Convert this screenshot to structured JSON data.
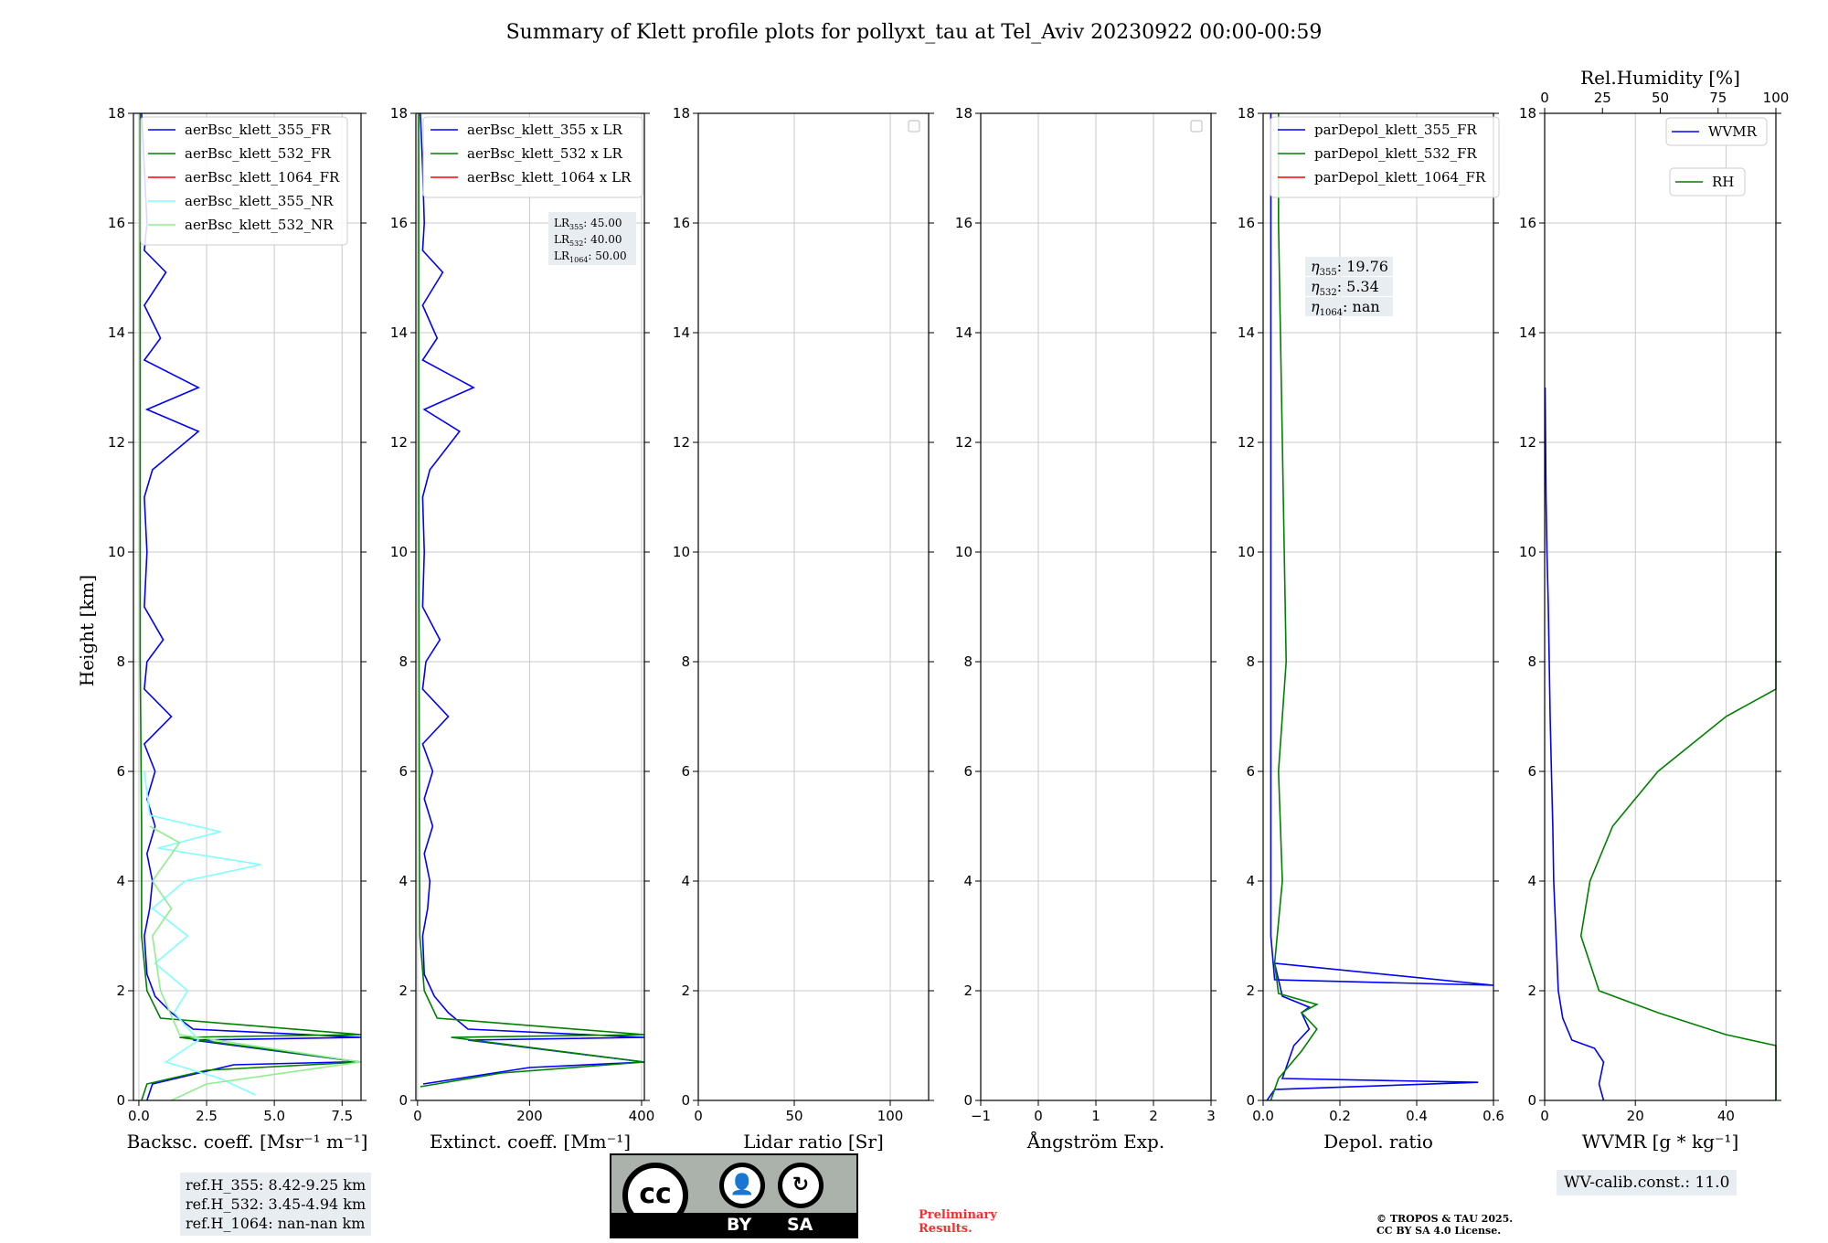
{
  "title": "Summary of Klett profile plots for pollyxt_tau at Tel_Aviv 20230922 00:00-00:59",
  "y_axis": {
    "label": "Height [km]",
    "range": [
      0,
      18
    ],
    "ticks": [
      "0",
      "2",
      "4",
      "6",
      "8",
      "10",
      "12",
      "14",
      "16",
      "18"
    ]
  },
  "ref_heights": [
    "ref.H_355: 8.42-9.25 km",
    "ref.H_532: 3.45-4.94 km",
    "ref.H_1064: nan-nan km"
  ],
  "wv_calib": "WV-calib.const.: 11.0",
  "preliminary": [
    "Preliminary",
    "Results."
  ],
  "copyright": [
    "© TROPOS & TAU 2025.",
    "CC BY SA 4.0 License."
  ],
  "license_badge": {
    "icon": "cc-by-sa-icon",
    "labels": [
      "BY",
      "SA"
    ],
    "cc": "cc"
  },
  "colors": {
    "c355": "#0000ff",
    "c532": "#008000",
    "c1064": "#ff0000",
    "c355nr": "#7fffff",
    "c532nr": "#90ee90"
  },
  "chart_data": [
    {
      "type": "line",
      "xlabel": "Backsc. coeff. [Msr⁻¹ m⁻¹]",
      "xlim": [
        -0.2,
        8.2
      ],
      "ylim": [
        0,
        18
      ],
      "xticks": [
        "0.0",
        "2.5",
        "5.0",
        "7.5"
      ],
      "xtick_values": [
        0,
        2.5,
        5,
        7.5
      ],
      "grid": true,
      "legend": "top-left",
      "series": [
        {
          "name": "aerBsc_klett_355_FR",
          "color": "#0000ff",
          "points": [
            [
              0.3,
              0
            ],
            [
              0.5,
              0.3
            ],
            [
              3.5,
              0.65
            ],
            [
              7.5,
              0.7
            ],
            [
              8.2,
              0.7
            ],
            [
              2.0,
              1.1
            ],
            [
              8.2,
              1.15
            ],
            [
              2.0,
              1.3
            ],
            [
              1.2,
              1.6
            ],
            [
              0.6,
              1.9
            ],
            [
              0.3,
              2.3
            ],
            [
              0.2,
              3.0
            ],
            [
              0.4,
              3.5
            ],
            [
              0.5,
              4.0
            ],
            [
              0.3,
              4.5
            ],
            [
              0.6,
              5.0
            ],
            [
              0.3,
              5.5
            ],
            [
              0.6,
              6.0
            ],
            [
              0.2,
              6.5
            ],
            [
              1.2,
              7.0
            ],
            [
              0.2,
              7.5
            ],
            [
              0.3,
              8.0
            ],
            [
              0.9,
              8.4
            ],
            [
              0.2,
              9.0
            ],
            [
              0.3,
              10.0
            ],
            [
              0.2,
              11.0
            ],
            [
              0.5,
              11.5
            ],
            [
              2.2,
              12.2
            ],
            [
              0.3,
              12.6
            ],
            [
              2.2,
              13.0
            ],
            [
              0.2,
              13.5
            ],
            [
              0.8,
              13.9
            ],
            [
              0.2,
              14.5
            ],
            [
              1.0,
              15.1
            ],
            [
              0.2,
              15.5
            ],
            [
              0.3,
              16.0
            ],
            [
              0.2,
              17.0
            ],
            [
              0.1,
              18.0
            ]
          ]
        },
        {
          "name": "aerBsc_klett_532_FR",
          "color": "#008000",
          "points": [
            [
              0.1,
              0
            ],
            [
              0.3,
              0.3
            ],
            [
              2.5,
              0.55
            ],
            [
              8.2,
              0.7
            ],
            [
              1.5,
              1.15
            ],
            [
              8.2,
              1.2
            ],
            [
              0.8,
              1.5
            ],
            [
              0.3,
              2.0
            ],
            [
              0.1,
              3.0
            ],
            [
              0.1,
              5.0
            ],
            [
              0.05,
              8.0
            ],
            [
              0.05,
              12.0
            ],
            [
              0.05,
              18.0
            ]
          ]
        },
        {
          "name": "aerBsc_klett_1064_FR",
          "color": "#ff0000",
          "points": []
        },
        {
          "name": "aerBsc_klett_355_NR",
          "color": "#7fffff",
          "points": [
            [
              4.3,
              0.1
            ],
            [
              3.0,
              0.4
            ],
            [
              1.0,
              0.7
            ],
            [
              2.2,
              1.1
            ],
            [
              1.3,
              1.6
            ],
            [
              1.8,
              2.0
            ],
            [
              0.6,
              2.5
            ],
            [
              1.8,
              3.0
            ],
            [
              0.5,
              3.5
            ],
            [
              1.7,
              4.0
            ],
            [
              4.5,
              4.3
            ],
            [
              0.7,
              4.6
            ],
            [
              3.0,
              4.9
            ],
            [
              0.4,
              5.2
            ],
            [
              0.2,
              6.0
            ]
          ]
        },
        {
          "name": "aerBsc_klett_532_NR",
          "color": "#90ee90",
          "points": [
            [
              1.2,
              0
            ],
            [
              2.5,
              0.3
            ],
            [
              8.2,
              0.7
            ],
            [
              1.5,
              1.2
            ],
            [
              0.8,
              2.0
            ],
            [
              0.5,
              3.0
            ],
            [
              1.2,
              3.5
            ],
            [
              0.5,
              4.0
            ],
            [
              1.5,
              4.7
            ],
            [
              0.4,
              5.0
            ]
          ]
        }
      ]
    },
    {
      "type": "line",
      "xlabel": "Extinct. coeff. [Mm⁻¹]",
      "xlim": [
        -3,
        405
      ],
      "ylim": [
        0,
        18
      ],
      "xticks": [
        "0",
        "200",
        "400"
      ],
      "xtick_values": [
        0,
        200,
        400
      ],
      "grid": true,
      "legend": "top-left",
      "lidar_ratios": [
        "45.00",
        "40.00",
        "50.00"
      ],
      "series": [
        {
          "name": "aerBsc_klett_355 x LR",
          "color": "#0000ff",
          "points": [
            [
              10,
              0.3
            ],
            [
              200,
              0.6
            ],
            [
              405,
              0.7
            ],
            [
              90,
              1.1
            ],
            [
              405,
              1.15
            ],
            [
              90,
              1.3
            ],
            [
              55,
              1.6
            ],
            [
              30,
              1.9
            ],
            [
              12,
              2.3
            ],
            [
              9,
              3.0
            ],
            [
              18,
              3.5
            ],
            [
              22,
              4.0
            ],
            [
              12,
              4.5
            ],
            [
              27,
              5.0
            ],
            [
              12,
              5.5
            ],
            [
              27,
              6.0
            ],
            [
              9,
              6.5
            ],
            [
              55,
              7.0
            ],
            [
              9,
              7.5
            ],
            [
              15,
              8.0
            ],
            [
              40,
              8.4
            ],
            [
              9,
              9.0
            ],
            [
              12,
              10.0
            ],
            [
              9,
              11.0
            ],
            [
              22,
              11.5
            ],
            [
              75,
              12.2
            ],
            [
              12,
              12.6
            ],
            [
              100,
              13.0
            ],
            [
              9,
              13.5
            ],
            [
              35,
              13.9
            ],
            [
              9,
              14.5
            ],
            [
              45,
              15.1
            ],
            [
              9,
              15.5
            ],
            [
              12,
              16.0
            ],
            [
              9,
              17.0
            ],
            [
              5,
              18.0
            ]
          ]
        },
        {
          "name": "aerBsc_klett_532 x LR",
          "color": "#008000",
          "points": [
            [
              5,
              0.25
            ],
            [
              150,
              0.5
            ],
            [
              405,
              0.7
            ],
            [
              60,
              1.15
            ],
            [
              405,
              1.2
            ],
            [
              35,
              1.5
            ],
            [
              12,
              2.0
            ],
            [
              4,
              3.0
            ],
            [
              3,
              6.0
            ],
            [
              2,
              12.0
            ],
            [
              2,
              18.0
            ]
          ]
        },
        {
          "name": "aerBsc_klett_1064 x LR",
          "color": "#ff0000",
          "points": []
        }
      ]
    },
    {
      "type": "line",
      "xlabel": "Lidar ratio [Sr]",
      "xlim": [
        0,
        120
      ],
      "ylim": [
        0,
        18
      ],
      "xticks": [
        "0",
        "50",
        "100"
      ],
      "xtick_values": [
        0,
        50,
        100
      ],
      "grid": true,
      "series": []
    },
    {
      "type": "line",
      "xlabel": "Ångström Exp.",
      "xlim": [
        -1,
        3
      ],
      "ylim": [
        0,
        18
      ],
      "xticks": [
        "−1",
        "0",
        "1",
        "2",
        "3"
      ],
      "xtick_values": [
        -1,
        0,
        1,
        2,
        3
      ],
      "grid": true,
      "series": []
    },
    {
      "type": "line",
      "xlabel": "Depol. ratio",
      "xlim": [
        0,
        0.6
      ],
      "ylim": [
        0,
        18
      ],
      "xticks": [
        "0.0",
        "0.2",
        "0.4",
        "0.6"
      ],
      "xtick_values": [
        0,
        0.2,
        0.4,
        0.6
      ],
      "grid": true,
      "legend": "top-left",
      "eta": [
        "19.76",
        "5.34",
        "nan"
      ],
      "series": [
        {
          "name": "parDepol_klett_355_FR",
          "color": "#0000ff",
          "points": [
            [
              0.01,
              0
            ],
            [
              0.03,
              0.2
            ],
            [
              0.56,
              0.33
            ],
            [
              0.05,
              0.4
            ],
            [
              0.08,
              1.0
            ],
            [
              0.12,
              1.3
            ],
            [
              0.1,
              1.6
            ],
            [
              0.12,
              1.7
            ],
            [
              0.05,
              1.9
            ],
            [
              0.03,
              2.5
            ],
            [
              0.6,
              2.1
            ],
            [
              0.03,
              2.2
            ],
            [
              0.02,
              3.0
            ],
            [
              0.02,
              6.0
            ],
            [
              0.02,
              10.0
            ],
            [
              0.02,
              14.0
            ],
            [
              0.02,
              18.0
            ]
          ]
        },
        {
          "name": "parDepol_klett_532_FR",
          "color": "#008000",
          "points": [
            [
              0.02,
              0
            ],
            [
              0.04,
              0.4
            ],
            [
              0.1,
              0.9
            ],
            [
              0.14,
              1.3
            ],
            [
              0.1,
              1.6
            ],
            [
              0.14,
              1.75
            ],
            [
              0.04,
              1.95
            ],
            [
              0.03,
              2.5
            ],
            [
              0.05,
              4.0
            ],
            [
              0.04,
              6.0
            ],
            [
              0.06,
              8.0
            ],
            [
              0.05,
              12.0
            ],
            [
              0.04,
              16.0
            ],
            [
              0.04,
              18.0
            ]
          ]
        },
        {
          "name": "parDepol_klett_1064_FR",
          "color": "#ff0000",
          "points": []
        }
      ]
    },
    {
      "type": "line",
      "xlabel": "WVMR [g * kg⁻¹]",
      "xlim": [
        0,
        51
      ],
      "ylim": [
        0,
        18
      ],
      "xticks": [
        "0",
        "20",
        "40"
      ],
      "xtick_values": [
        0,
        20,
        40
      ],
      "top_axis": {
        "label": "Rel.Humidity [%]",
        "range": [
          0,
          100
        ],
        "ticks": [
          "0",
          "25",
          "50",
          "75",
          "100"
        ],
        "tick_values": [
          0,
          25,
          50,
          75,
          100
        ]
      },
      "grid": true,
      "legend_entries": [
        "WVMR",
        "RH"
      ],
      "series": [
        {
          "name": "WVMR",
          "color": "#0000ff",
          "points": [
            [
              13,
              0
            ],
            [
              12,
              0.3
            ],
            [
              13,
              0.7
            ],
            [
              11,
              0.95
            ],
            [
              6,
              1.1
            ],
            [
              4,
              1.5
            ],
            [
              3,
              2.0
            ],
            [
              2.5,
              3.0
            ],
            [
              2,
              4.0
            ],
            [
              1.8,
              5.0
            ],
            [
              1.5,
              6.0
            ],
            [
              1.2,
              7.0
            ],
            [
              1,
              8.0
            ],
            [
              0.8,
              9.0
            ],
            [
              0.5,
              10.0
            ],
            [
              0.3,
              11.0
            ],
            [
              0.2,
              12.0
            ],
            [
              0.1,
              13.0
            ]
          ]
        },
        {
          "name": "RH",
          "color": "#008000",
          "points": [
            [
              60,
              0
            ],
            [
              65,
              0.3
            ],
            [
              75,
              0.5
            ],
            [
              85,
              0.8
            ],
            [
              70,
              1.0
            ],
            [
              40,
              1.2
            ],
            [
              25,
              1.6
            ],
            [
              12,
              2.0
            ],
            [
              8,
              3.0
            ],
            [
              10,
              4.0
            ],
            [
              15,
              5.0
            ],
            [
              25,
              6.0
            ],
            [
              40,
              7.0
            ],
            [
              60,
              7.5
            ],
            [
              80,
              8.0
            ],
            [
              95,
              9.0
            ],
            [
              70,
              9.5
            ],
            [
              100,
              10.0
            ]
          ]
        }
      ]
    }
  ]
}
